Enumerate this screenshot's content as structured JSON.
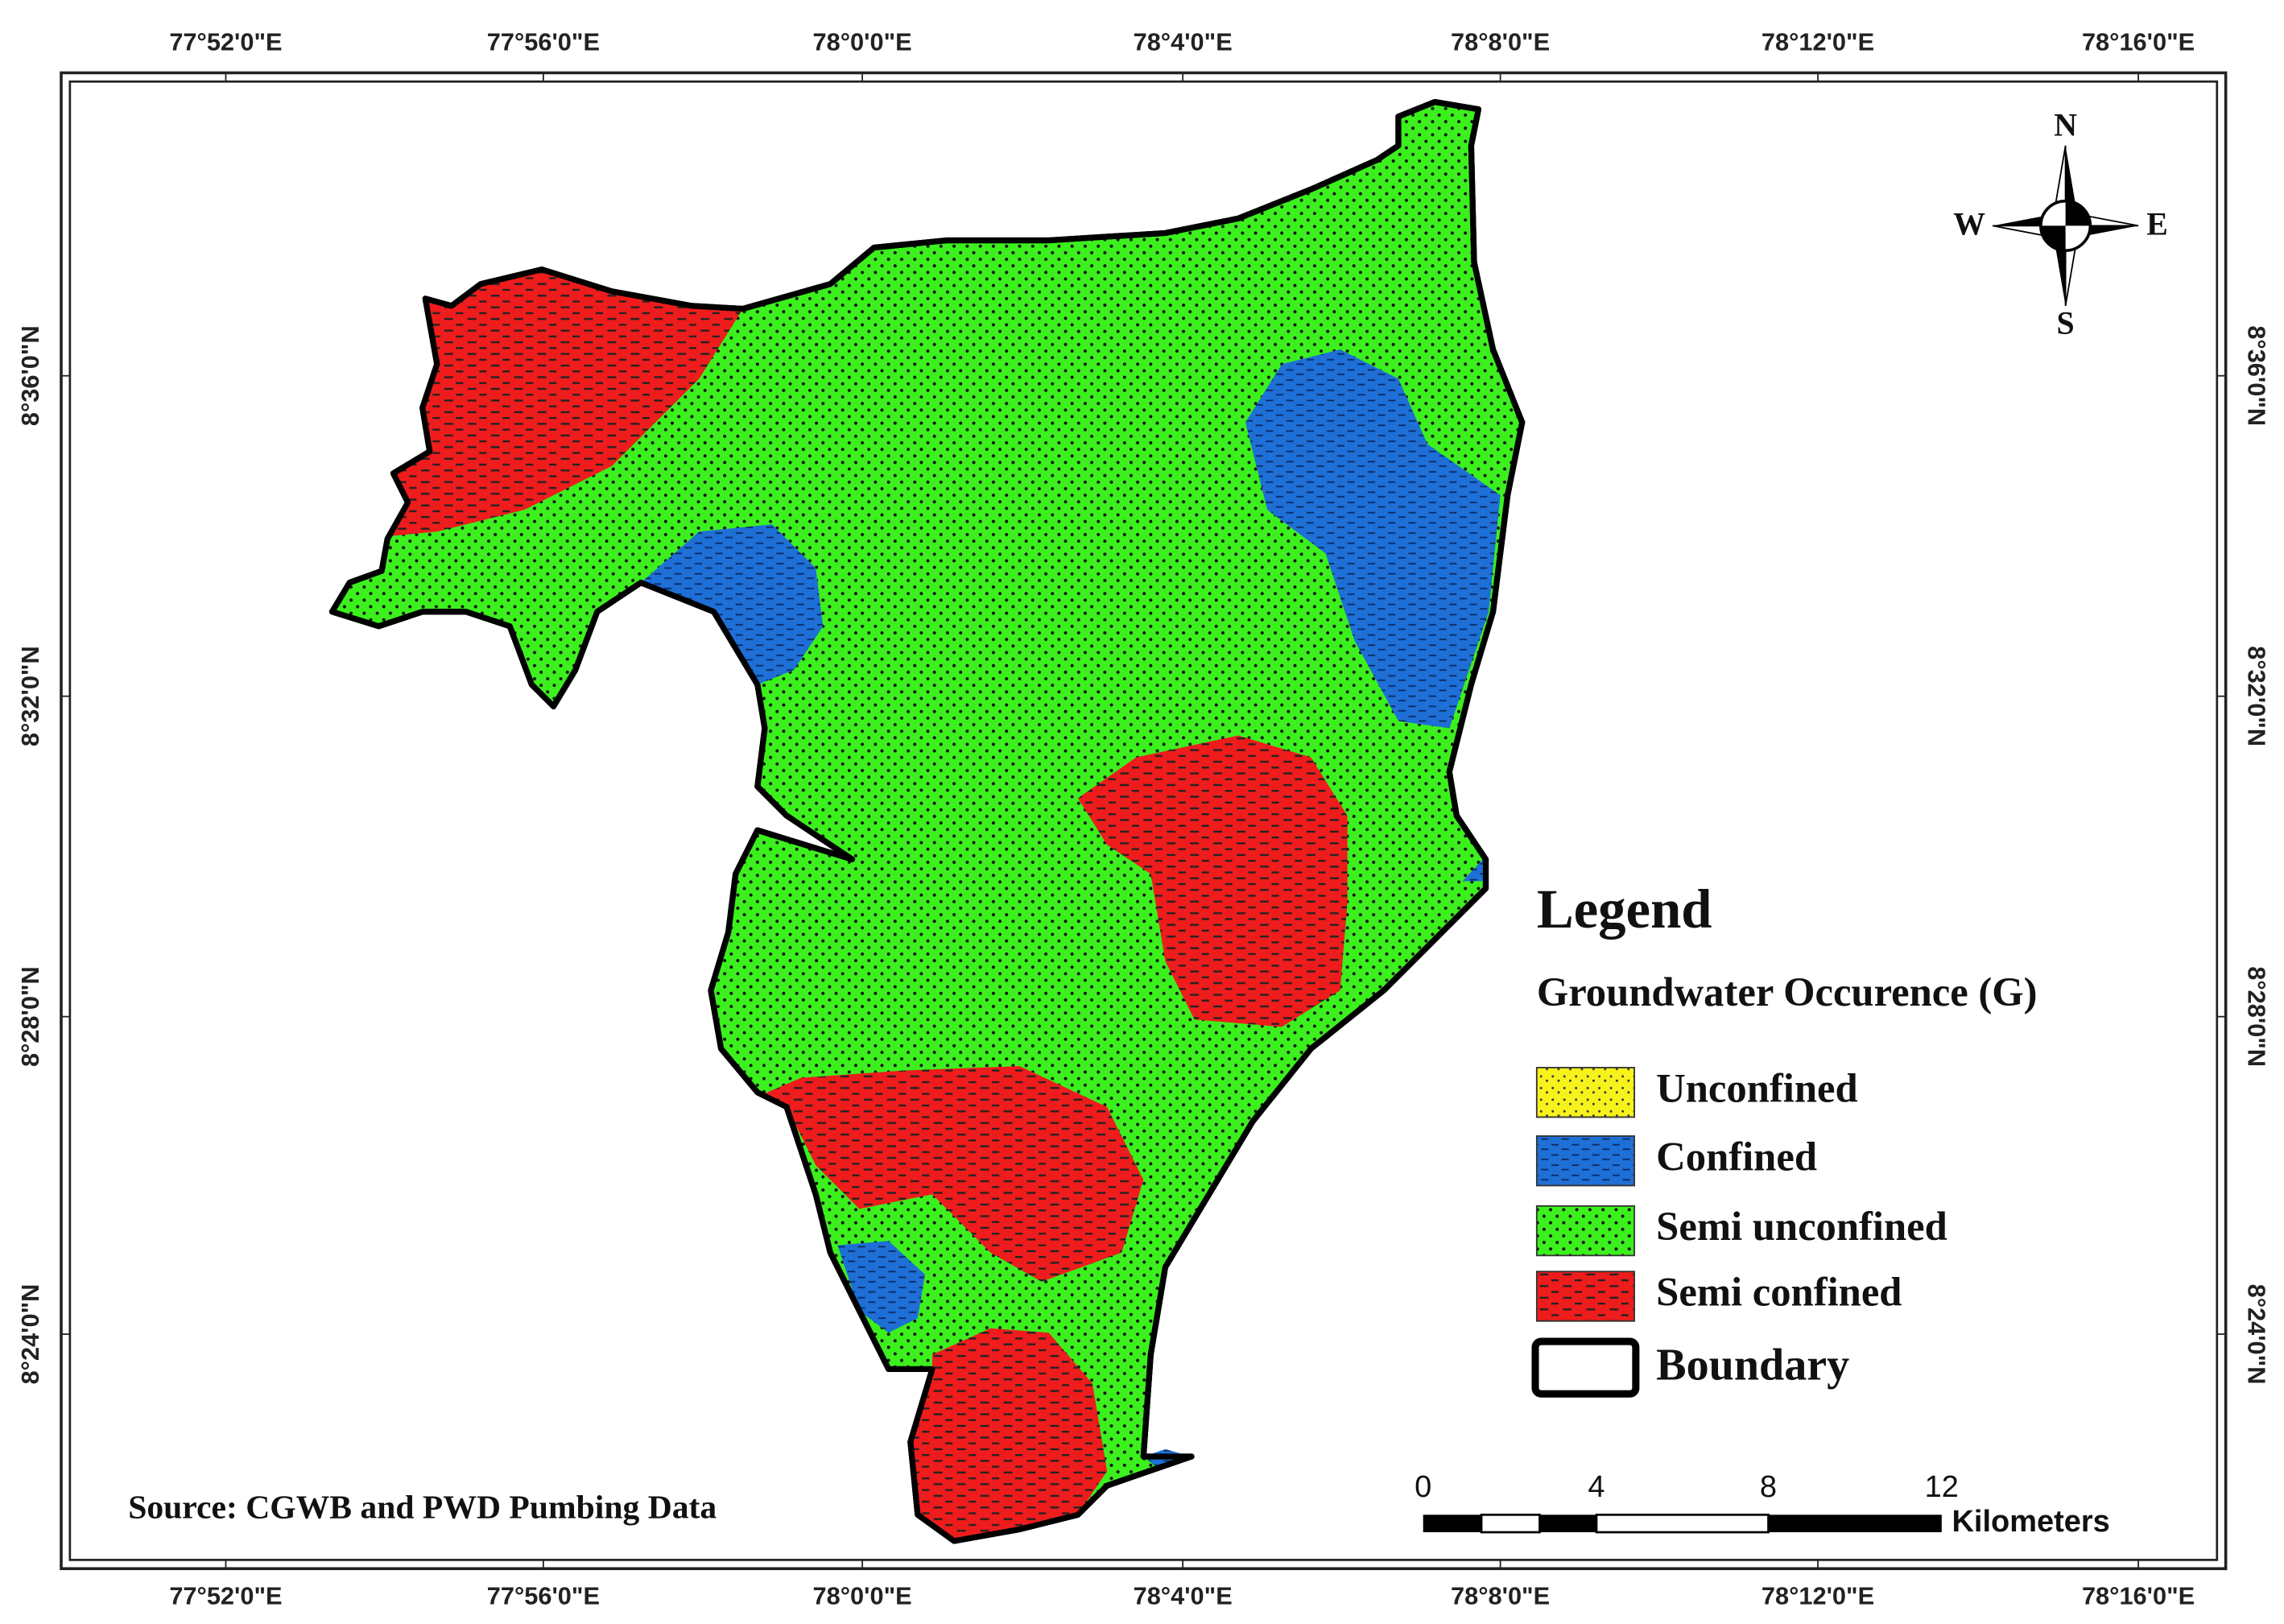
{
  "map": {
    "top_labels": [
      "77°52'0\"E",
      "77°56'0\"E",
      "78°0'0\"E",
      "78°4'0\"E",
      "78°8'0\"E",
      "78°12'0\"E",
      "78°16'0\"E"
    ],
    "bottom_labels": [
      "77°52'0\"E",
      "77°56'0\"E",
      "78°0'0\"E",
      "78°4'0\"E",
      "78°8'0\"E",
      "78°12'0\"E",
      "78°16'0\"E"
    ],
    "left_labels": [
      "8°36'0\"N",
      "8°32'0\"N",
      "8°28'0\"N",
      "8°24'0\"N"
    ],
    "right_labels": [
      "8°36'0\"N",
      "8°32'0\"N",
      "8°28'0\"N",
      "8°24'0\"N"
    ],
    "compass": {
      "n": "N",
      "s": "S",
      "w": "W",
      "e": "E"
    },
    "legend": {
      "title": "Legend",
      "subtitle": "Groundwater Occurence (G)",
      "items": [
        "Unconfined",
        "Confined",
        "Semi unconfined",
        "Semi confined",
        "Boundary"
      ]
    },
    "scale_bar": {
      "labels": [
        "0",
        "4",
        "8",
        "12"
      ],
      "unit": "Kilometers"
    },
    "source": "Source: CGWB and PWD Pumbing Data"
  }
}
